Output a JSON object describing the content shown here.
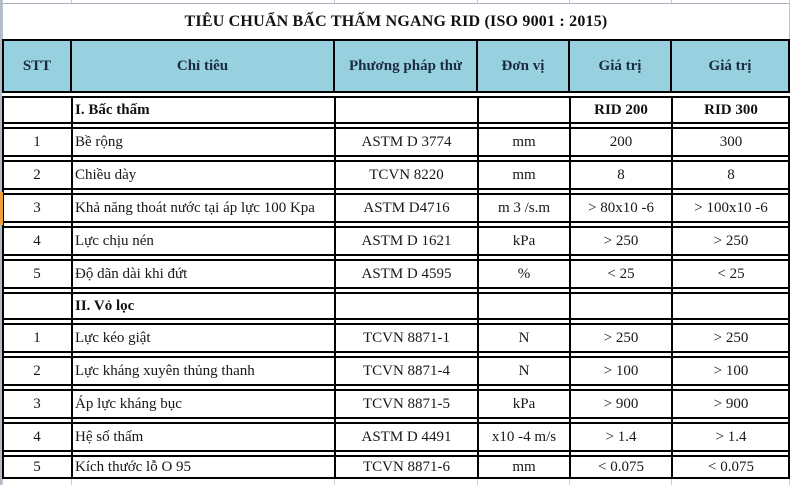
{
  "title": "TIÊU CHUẨN BẤC THẤM NGANG RID (ISO 9001 : 2015)",
  "table": {
    "headers": [
      "STT",
      "Chỉ tiêu",
      "Phương pháp thử",
      "Đơn vị",
      "Giá trị",
      "Giá trị"
    ],
    "sections": [
      {
        "label": "I. Bấc thấm",
        "col4": "RID 200",
        "col5": "RID 300",
        "rows": [
          [
            "1",
            "Bề rộng",
            "ASTM D 3774",
            "mm",
            "200",
            "300"
          ],
          [
            "2",
            "Chiều dày",
            "TCVN 8220",
            "mm",
            "8",
            "8"
          ],
          [
            "3",
            "Khả năng thoát nước tại áp lực 100 Kpa",
            "ASTM D4716",
            "m 3 /s.m",
            "> 80x10 -6",
            "> 100x10 -6"
          ],
          [
            "4",
            "Lực chịu nén",
            "ASTM D 1621",
            "kPa",
            "> 250",
            "> 250"
          ],
          [
            "5",
            "Độ dãn dài khi đứt",
            "ASTM D 4595",
            "%",
            "< 25",
            "< 25"
          ]
        ]
      },
      {
        "label": "II. Vỏ lọc",
        "col4": "",
        "col5": "",
        "rows": [
          [
            "1",
            "Lực kéo giật",
            "TCVN 8871-1",
            "N",
            "> 250",
            "> 250"
          ],
          [
            "2",
            "Lực kháng xuyên thủng thanh",
            "TCVN 8871-4",
            "N",
            "> 100",
            "> 100"
          ],
          [
            "3",
            "Áp lực kháng bục",
            "TCVN 8871-5",
            "kPa",
            "> 900",
            "> 900"
          ],
          [
            "4",
            "Hệ số thấm",
            "ASTM D 4491",
            "x10 -4 m/s",
            "> 1.4",
            "> 1.4"
          ],
          [
            "5",
            "Kích thước lỗ O 95",
            "TCVN 8871-6",
            "mm",
            "< 0.075",
            "< 0.075"
          ]
        ]
      }
    ]
  },
  "colors": {
    "header_bg": "#97d1e0",
    "header_text": "#1c2b45",
    "border": "#000000",
    "edge_marker": "#eaa23b"
  }
}
